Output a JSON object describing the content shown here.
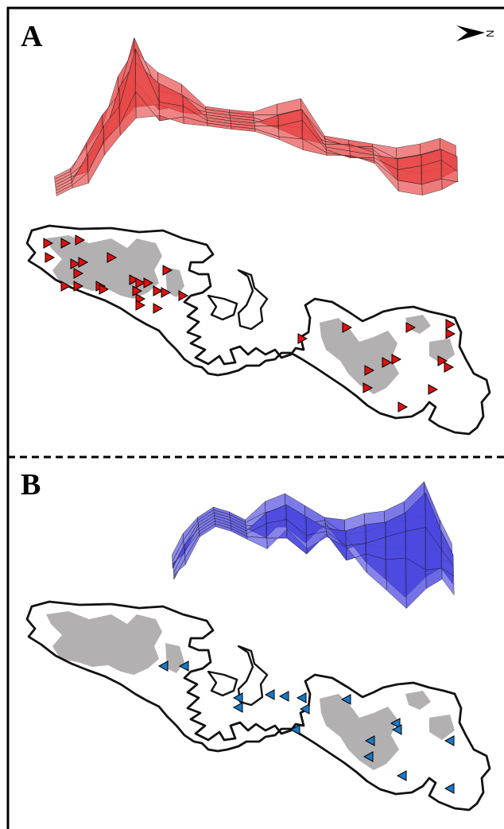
{
  "panels": [
    {
      "id": "A",
      "label": "A",
      "surface_color": "#e84848",
      "marker_color": "#e01010"
    },
    {
      "id": "B",
      "label": "B",
      "surface_color": "#4a46e0",
      "marker_color": "#1a78c8"
    }
  ],
  "north_arrow": {
    "label": "N",
    "icon": "north-arrow-icon"
  },
  "colors": {
    "frame": "#000000",
    "divider": "#000000",
    "island_outline": "#111111",
    "gray_patches": "#b2b0b0",
    "mesh_lines": "#1a1a1a"
  }
}
